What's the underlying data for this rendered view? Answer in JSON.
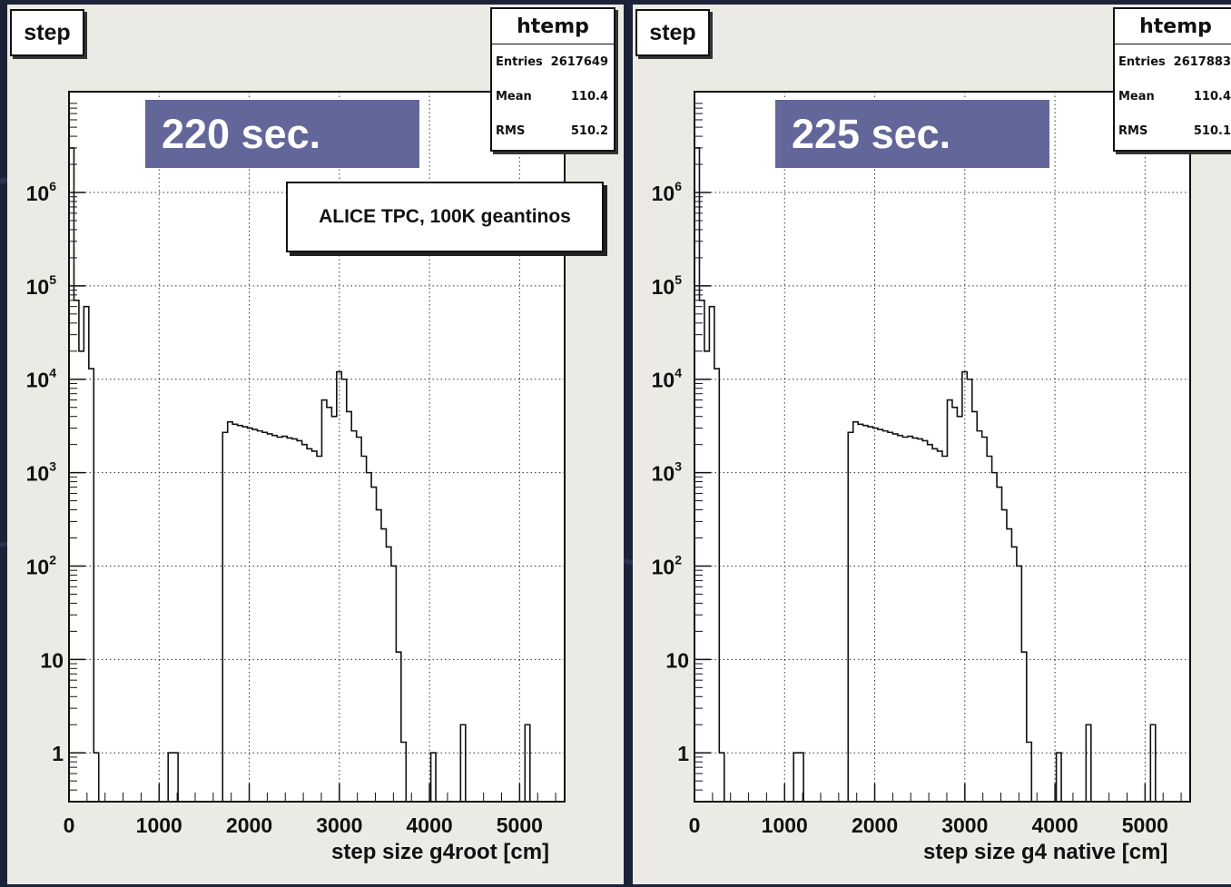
{
  "colors": {
    "background": "#1c2238",
    "panel": "#eceae4",
    "banner": "#636699",
    "line": "#111111"
  },
  "panels": [
    {
      "title": "step",
      "stats": {
        "name": "htemp",
        "entries_label": "Entries",
        "entries": "2617649",
        "mean_label": "Mean",
        "mean": "110.4",
        "rms_label": "RMS",
        "rms": "510.2"
      },
      "time": "220 sec.",
      "annotation": "ALICE TPC, 100K geantinos",
      "xlabel": "step size g4root [cm]"
    },
    {
      "title": "step",
      "stats": {
        "name": "htemp",
        "entries_label": "Entries",
        "entries": "2617883",
        "mean_label": "Mean",
        "mean": "110.4",
        "rms_label": "RMS",
        "rms": "510.1"
      },
      "time": "225 sec.",
      "annotation": "",
      "xlabel": "step size g4 native [cm]"
    }
  ],
  "chart_data": [
    {
      "type": "histogram",
      "title": "step",
      "xlabel": "step size g4root [cm]",
      "ylabel": "",
      "xlim": [
        0,
        5500
      ],
      "ylim": [
        0.3,
        12000000
      ],
      "y_scale": "log",
      "grid": true,
      "x_ticks": [
        "0",
        "1000",
        "2000",
        "3000",
        "4000",
        "5000"
      ],
      "y_ticks": [
        {
          "value": 1,
          "label": "1"
        },
        {
          "value": 10,
          "label": "10"
        },
        {
          "value": 100,
          "base": "10",
          "exp": "2"
        },
        {
          "value": 1000,
          "base": "10",
          "exp": "3"
        },
        {
          "value": 10000,
          "base": "10",
          "exp": "4"
        },
        {
          "value": 100000,
          "base": "10",
          "exp": "5"
        },
        {
          "value": 1000000,
          "base": "10",
          "exp": "6"
        }
      ],
      "bin_width": 55,
      "bins": [
        {
          "x": 0,
          "y": 3000000
        },
        {
          "x": 55,
          "y": 70000
        },
        {
          "x": 110,
          "y": 20000
        },
        {
          "x": 165,
          "y": 60000
        },
        {
          "x": 220,
          "y": 13000
        },
        {
          "x": 275,
          "y": 1
        },
        {
          "x": 1100,
          "y": 1
        },
        {
          "x": 1155,
          "y": 1
        },
        {
          "x": 1705,
          "y": 2700
        },
        {
          "x": 1760,
          "y": 3500
        },
        {
          "x": 1815,
          "y": 3300
        },
        {
          "x": 1870,
          "y": 3200
        },
        {
          "x": 1925,
          "y": 3100
        },
        {
          "x": 1980,
          "y": 3000
        },
        {
          "x": 2035,
          "y": 2900
        },
        {
          "x": 2090,
          "y": 2800
        },
        {
          "x": 2145,
          "y": 2700
        },
        {
          "x": 2200,
          "y": 2600
        },
        {
          "x": 2255,
          "y": 2500
        },
        {
          "x": 2310,
          "y": 2400
        },
        {
          "x": 2365,
          "y": 2450
        },
        {
          "x": 2420,
          "y": 2350
        },
        {
          "x": 2475,
          "y": 2300
        },
        {
          "x": 2530,
          "y": 2200
        },
        {
          "x": 2585,
          "y": 2000
        },
        {
          "x": 2640,
          "y": 1800
        },
        {
          "x": 2695,
          "y": 1700
        },
        {
          "x": 2750,
          "y": 1500
        },
        {
          "x": 2805,
          "y": 6000
        },
        {
          "x": 2860,
          "y": 5000
        },
        {
          "x": 2915,
          "y": 4000
        },
        {
          "x": 2970,
          "y": 12000
        },
        {
          "x": 3025,
          "y": 10000
        },
        {
          "x": 3080,
          "y": 4500
        },
        {
          "x": 3135,
          "y": 2800
        },
        {
          "x": 3190,
          "y": 2400
        },
        {
          "x": 3245,
          "y": 1500
        },
        {
          "x": 3300,
          "y": 1000
        },
        {
          "x": 3355,
          "y": 700
        },
        {
          "x": 3410,
          "y": 400
        },
        {
          "x": 3465,
          "y": 250
        },
        {
          "x": 3520,
          "y": 160
        },
        {
          "x": 3575,
          "y": 100
        },
        {
          "x": 3630,
          "y": 12
        },
        {
          "x": 3685,
          "y": 1.3
        },
        {
          "x": 4015,
          "y": 1
        },
        {
          "x": 4345,
          "y": 2
        },
        {
          "x": 5060,
          "y": 2
        }
      ]
    },
    {
      "type": "histogram",
      "title": "step",
      "xlabel": "step size g4 native [cm]",
      "ylabel": "",
      "xlim": [
        0,
        5500
      ],
      "ylim": [
        0.3,
        12000000
      ],
      "y_scale": "log",
      "grid": true,
      "x_ticks": [
        "0",
        "1000",
        "2000",
        "3000",
        "4000",
        "5000"
      ],
      "y_ticks": [
        {
          "value": 1,
          "label": "1"
        },
        {
          "value": 10,
          "label": "10"
        },
        {
          "value": 100,
          "base": "10",
          "exp": "2"
        },
        {
          "value": 1000,
          "base": "10",
          "exp": "3"
        },
        {
          "value": 10000,
          "base": "10",
          "exp": "4"
        },
        {
          "value": 100000,
          "base": "10",
          "exp": "5"
        },
        {
          "value": 1000000,
          "base": "10",
          "exp": "6"
        }
      ],
      "bin_width": 55,
      "bins": [
        {
          "x": 0,
          "y": 3000000
        },
        {
          "x": 55,
          "y": 70000
        },
        {
          "x": 110,
          "y": 20000
        },
        {
          "x": 165,
          "y": 60000
        },
        {
          "x": 220,
          "y": 13000
        },
        {
          "x": 275,
          "y": 1
        },
        {
          "x": 1100,
          "y": 1
        },
        {
          "x": 1155,
          "y": 1
        },
        {
          "x": 1705,
          "y": 2700
        },
        {
          "x": 1760,
          "y": 3500
        },
        {
          "x": 1815,
          "y": 3300
        },
        {
          "x": 1870,
          "y": 3200
        },
        {
          "x": 1925,
          "y": 3100
        },
        {
          "x": 1980,
          "y": 3000
        },
        {
          "x": 2035,
          "y": 2900
        },
        {
          "x": 2090,
          "y": 2800
        },
        {
          "x": 2145,
          "y": 2700
        },
        {
          "x": 2200,
          "y": 2600
        },
        {
          "x": 2255,
          "y": 2500
        },
        {
          "x": 2310,
          "y": 2400
        },
        {
          "x": 2365,
          "y": 2450
        },
        {
          "x": 2420,
          "y": 2350
        },
        {
          "x": 2475,
          "y": 2300
        },
        {
          "x": 2530,
          "y": 2200
        },
        {
          "x": 2585,
          "y": 2000
        },
        {
          "x": 2640,
          "y": 1800
        },
        {
          "x": 2695,
          "y": 1700
        },
        {
          "x": 2750,
          "y": 1500
        },
        {
          "x": 2805,
          "y": 6000
        },
        {
          "x": 2860,
          "y": 5000
        },
        {
          "x": 2915,
          "y": 4000
        },
        {
          "x": 2970,
          "y": 12000
        },
        {
          "x": 3025,
          "y": 10000
        },
        {
          "x": 3080,
          "y": 4500
        },
        {
          "x": 3135,
          "y": 2800
        },
        {
          "x": 3190,
          "y": 2400
        },
        {
          "x": 3245,
          "y": 1500
        },
        {
          "x": 3300,
          "y": 1000
        },
        {
          "x": 3355,
          "y": 700
        },
        {
          "x": 3410,
          "y": 400
        },
        {
          "x": 3465,
          "y": 250
        },
        {
          "x": 3520,
          "y": 160
        },
        {
          "x": 3575,
          "y": 100
        },
        {
          "x": 3630,
          "y": 12
        },
        {
          "x": 3685,
          "y": 1.3
        },
        {
          "x": 4015,
          "y": 1
        },
        {
          "x": 4345,
          "y": 2
        },
        {
          "x": 5060,
          "y": 2
        }
      ]
    }
  ]
}
